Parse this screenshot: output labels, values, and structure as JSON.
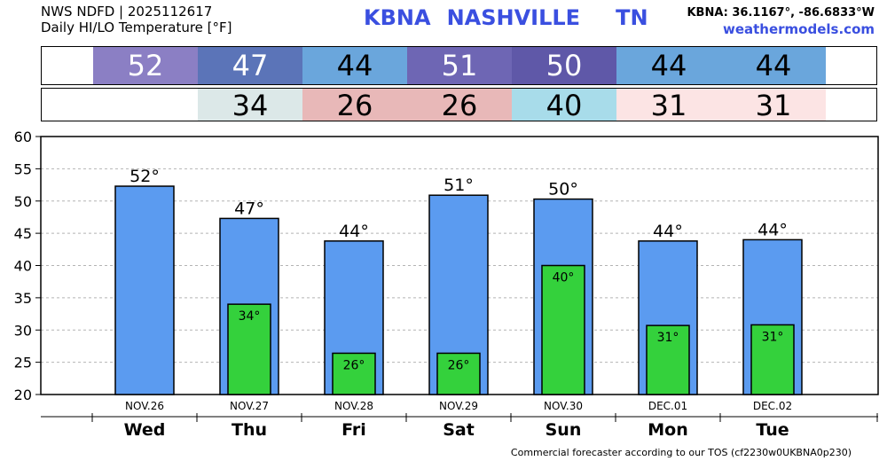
{
  "header": {
    "line1": "NWS NDFD | 2025112617",
    "line2": "Daily HI/LO Temperature [°F]",
    "station": "KBNA",
    "city": "NASHVILLE",
    "state": "TN",
    "coords": "KBNA: 36.1167°, -86.6833°W",
    "site": "weathermodels.com"
  },
  "hi_strip": [
    {
      "value": "52",
      "color": "#8b7fc4",
      "text": "#ffffff"
    },
    {
      "value": "47",
      "color": "#5b74b8",
      "text": "#ffffff"
    },
    {
      "value": "44",
      "color": "#6aa6dc",
      "text": "#000000"
    },
    {
      "value": "51",
      "color": "#6e66b4",
      "text": "#ffffff"
    },
    {
      "value": "50",
      "color": "#5f58a8",
      "text": "#ffffff"
    },
    {
      "value": "44",
      "color": "#6aa6dc",
      "text": "#000000"
    },
    {
      "value": "44",
      "color": "#6aa6dc",
      "text": "#000000"
    }
  ],
  "lo_strip": [
    {
      "value": "",
      "color": "#ffffff"
    },
    {
      "value": "34",
      "color": "#dce8e8"
    },
    {
      "value": "26",
      "color": "#e8b8b8"
    },
    {
      "value": "26",
      "color": "#e8b8b8"
    },
    {
      "value": "40",
      "color": "#a8dcea"
    },
    {
      "value": "31",
      "color": "#fce4e4"
    },
    {
      "value": "31",
      "color": "#fce4e4"
    }
  ],
  "chart_data": {
    "type": "bar",
    "categories": [
      "NOV.26",
      "NOV.27",
      "NOV.28",
      "NOV.29",
      "NOV.30",
      "DEC.01",
      "DEC.02"
    ],
    "days": [
      "Wed",
      "Thu",
      "Fri",
      "Sat",
      "Sun",
      "Mon",
      "Tue"
    ],
    "series": [
      {
        "values": [
          52.3,
          47.3,
          43.8,
          50.9,
          50.3,
          43.8,
          44.0
        ],
        "labels": [
          "52°",
          "47°",
          "44°",
          "51°",
          "50°",
          "44°",
          "44°"
        ],
        "color": "#5b9bf0"
      },
      {
        "values": [
          null,
          34.0,
          26.4,
          26.4,
          40.0,
          30.7,
          30.8
        ],
        "labels": [
          "",
          "34°",
          "26°",
          "26°",
          "40°",
          "31°",
          "31°"
        ],
        "color": "#34d13c"
      }
    ],
    "ylim": [
      20,
      60
    ],
    "yticks": [
      20,
      25,
      30,
      35,
      40,
      45,
      50,
      55,
      60
    ],
    "grid": true
  },
  "footer": "Commercial forecaster according to our TOS (cf2230w0UKBNA0p230)"
}
